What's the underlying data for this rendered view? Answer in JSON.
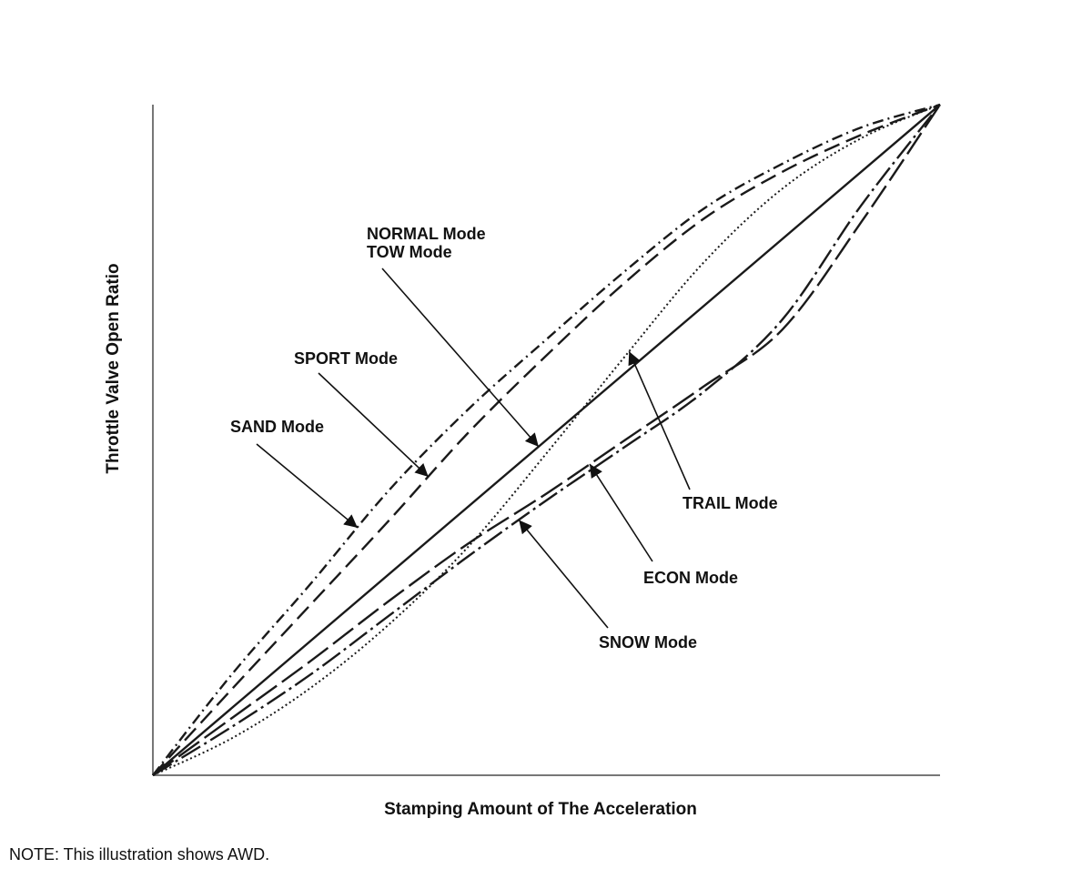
{
  "chart_data": {
    "type": "line",
    "title": "",
    "xlabel": "Stamping Amount of The Acceleration",
    "ylabel": "Throttle Valve Open Ratio",
    "xlim": [
      0,
      1
    ],
    "ylim": [
      0,
      1
    ],
    "grid": false,
    "legend": "none",
    "note": "NOTE: This illustration shows AWD.",
    "series": [
      {
        "name": "NORMAL Mode",
        "style": "solid",
        "x": [
          0,
          1
        ],
        "y": [
          0,
          1
        ]
      },
      {
        "name": "SPORT Mode",
        "style": "dashed",
        "x": [
          0,
          0.1,
          0.2,
          0.3,
          0.4,
          0.5,
          0.6,
          0.7,
          0.8,
          0.9,
          1.0
        ],
        "y": [
          0,
          0.128,
          0.254,
          0.38,
          0.51,
          0.626,
          0.735,
          0.83,
          0.9,
          0.955,
          1.0
        ]
      },
      {
        "name": "SAND Mode",
        "style": "dash-dot",
        "x": [
          0,
          0.1,
          0.2,
          0.3,
          0.4,
          0.5,
          0.6,
          0.7,
          0.8,
          0.9,
          1.0
        ],
        "y": [
          0,
          0.15,
          0.285,
          0.425,
          0.545,
          0.65,
          0.752,
          0.845,
          0.912,
          0.966,
          1.0
        ]
      },
      {
        "name": "TRAIL Mode",
        "style": "dotted",
        "x": [
          0,
          0.1,
          0.2,
          0.3,
          0.4,
          0.5,
          0.6,
          0.7,
          0.8,
          0.9,
          1.0
        ],
        "y": [
          0,
          0.055,
          0.13,
          0.225,
          0.34,
          0.48,
          0.625,
          0.765,
          0.875,
          0.95,
          1.0
        ]
      },
      {
        "name": "ECON Mode",
        "style": "long-dash",
        "x": [
          0,
          0.1,
          0.2,
          0.3,
          0.4,
          0.5,
          0.6,
          0.7,
          0.8,
          0.9,
          1.0
        ],
        "y": [
          0,
          0.085,
          0.17,
          0.26,
          0.345,
          0.42,
          0.5,
          0.58,
          0.665,
          0.825,
          1.0
        ]
      },
      {
        "name": "SNOW Mode",
        "style": "long-dash-dot",
        "x": [
          0,
          0.1,
          0.2,
          0.3,
          0.4,
          0.5,
          0.6,
          0.7,
          0.8,
          0.9,
          1.0
        ],
        "y": [
          0,
          0.072,
          0.15,
          0.238,
          0.326,
          0.41,
          0.49,
          0.572,
          0.68,
          0.85,
          1.0
        ]
      }
    ],
    "annotations": [
      {
        "lines": [
          "NORMAL Mode",
          "TOW Mode"
        ],
        "target_series": "NORMAL Mode"
      },
      {
        "lines": [
          "SPORT Mode"
        ],
        "target_series": "SPORT Mode"
      },
      {
        "lines": [
          "SAND Mode"
        ],
        "target_series": "SAND Mode"
      },
      {
        "lines": [
          "TRAIL Mode"
        ],
        "target_series": "TRAIL Mode"
      },
      {
        "lines": [
          "ECON Mode"
        ],
        "target_series": "ECON Mode"
      },
      {
        "lines": [
          "SNOW Mode"
        ],
        "target_series": "SNOW Mode"
      }
    ]
  }
}
